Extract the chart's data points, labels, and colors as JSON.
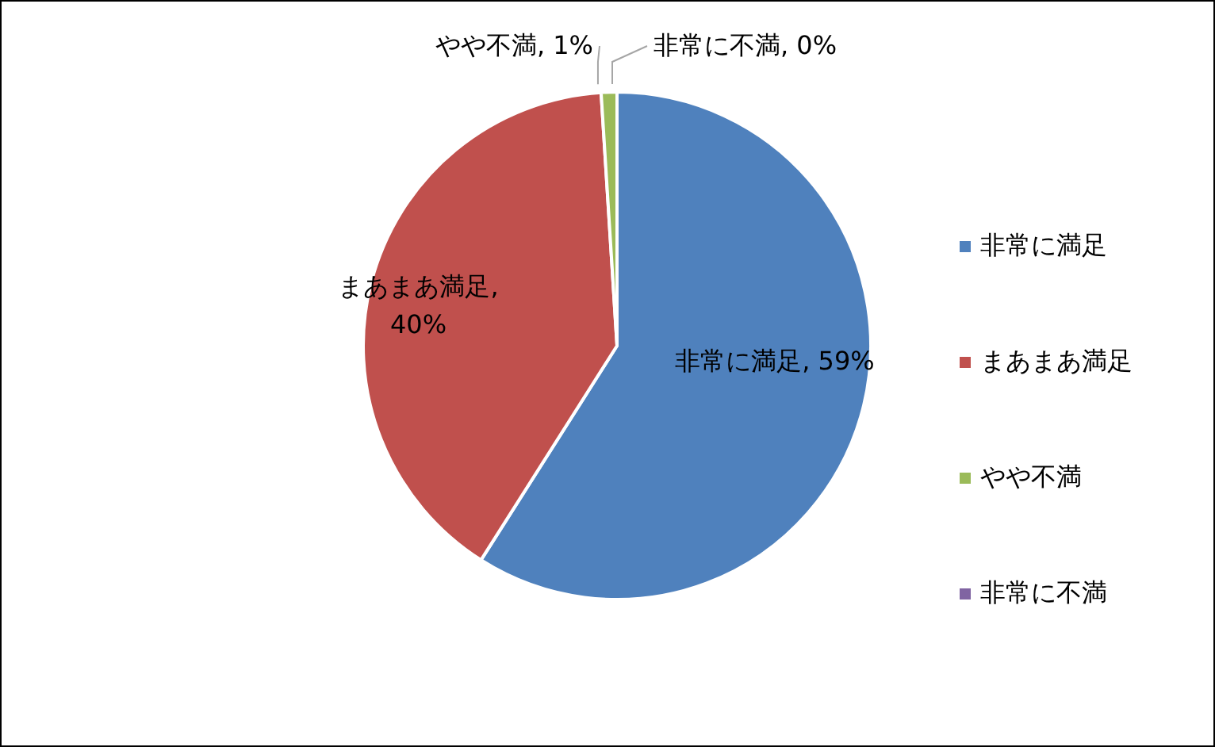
{
  "chart_data": {
    "type": "pie",
    "categories": [
      "非常に満足",
      "まあまあ満足",
      "やや不満",
      "非常に不満"
    ],
    "values": [
      59,
      40,
      1,
      0
    ],
    "colors": [
      "#4f81bd",
      "#c0504d",
      "#9bbb59",
      "#8064a2"
    ],
    "value_labels": [
      "非常に満足, 59%",
      "まあまあ満足, 40%",
      "やや不満, 1%",
      "非常に不満, 0%"
    ],
    "legend": "right"
  }
}
